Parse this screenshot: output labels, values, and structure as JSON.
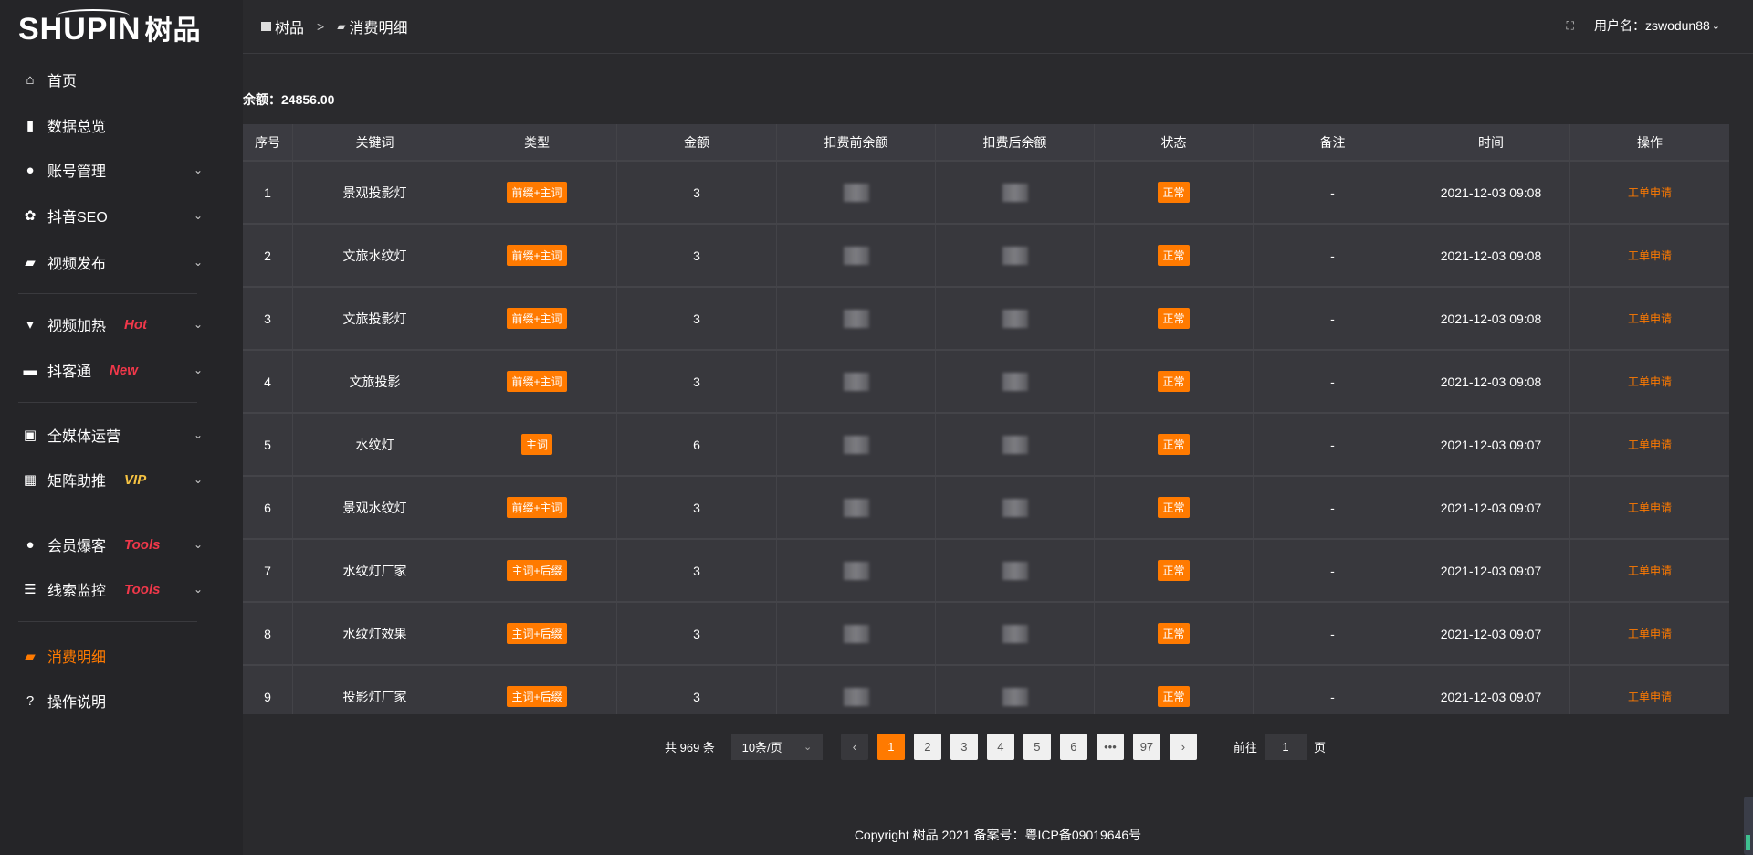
{
  "app": {
    "logo_text": "SHUPIN",
    "logo_cn": "树品"
  },
  "sidebar": {
    "items": [
      {
        "label": "首页",
        "icon": "home-icon",
        "glyph": "⌂",
        "tag": "",
        "has_chevron": false
      },
      {
        "label": "数据总览",
        "icon": "bar-chart-icon",
        "glyph": "▮",
        "tag": "",
        "has_chevron": false
      },
      {
        "label": "账号管理",
        "icon": "user-icon",
        "glyph": "●",
        "tag": "",
        "has_chevron": true
      },
      {
        "label": "抖音SEO",
        "icon": "gear-icon",
        "glyph": "✿",
        "tag": "",
        "has_chevron": true
      },
      {
        "label": "视频发布",
        "icon": "video-camera-icon",
        "glyph": "▰",
        "tag": "",
        "has_chevron": true
      },
      {
        "label": "视频加热",
        "icon": "flag-icon",
        "glyph": "▾",
        "tag": "Hot",
        "tag_color": "#f0384a",
        "has_chevron": true
      },
      {
        "label": "抖客通",
        "icon": "chat-icon",
        "glyph": "▬",
        "tag": "New",
        "tag_color": "#f0384a",
        "has_chevron": true
      },
      {
        "label": "全媒体运营",
        "icon": "monitor-icon",
        "glyph": "▣",
        "tag": "",
        "has_chevron": true
      },
      {
        "label": "矩阵助推",
        "icon": "grid-icon",
        "glyph": "▦",
        "tag": "VIP",
        "tag_color": "#f5c242",
        "has_chevron": true
      },
      {
        "label": "会员爆客",
        "icon": "user-icon",
        "glyph": "●",
        "tag": "Tools",
        "tag_color": "#f0384a",
        "has_chevron": true
      },
      {
        "label": "线索监控",
        "icon": "sliders-icon",
        "glyph": "☰",
        "tag": "Tools",
        "tag_color": "#f0384a",
        "has_chevron": true
      },
      {
        "label": "消费明细",
        "icon": "wallet-icon",
        "glyph": "▰",
        "tag": "",
        "has_chevron": false,
        "active": true
      },
      {
        "label": "操作说明",
        "icon": "question-icon",
        "glyph": "?",
        "tag": "",
        "has_chevron": false
      }
    ]
  },
  "header": {
    "breadcrumb": [
      "树品",
      "消费明细"
    ],
    "breadcrumb_sep": ">",
    "username_label": "用户名：zswodun88"
  },
  "balance": {
    "label": "余额：24856.00"
  },
  "table": {
    "columns": [
      "序号",
      "关键词",
      "类型",
      "金额",
      "扣费前余额",
      "扣费后余额",
      "状态",
      "备注",
      "时间",
      "操作"
    ],
    "rows": [
      {
        "no": "1",
        "keyword": "景观投影灯",
        "type": "前缀+主词",
        "amount": "3",
        "status": "正常",
        "note": "-",
        "time": "2021-12-03 09:08",
        "action": "工单申请"
      },
      {
        "no": "2",
        "keyword": "文旅水纹灯",
        "type": "前缀+主词",
        "amount": "3",
        "status": "正常",
        "note": "-",
        "time": "2021-12-03 09:08",
        "action": "工单申请"
      },
      {
        "no": "3",
        "keyword": "文旅投影灯",
        "type": "前缀+主词",
        "amount": "3",
        "status": "正常",
        "note": "-",
        "time": "2021-12-03 09:08",
        "action": "工单申请"
      },
      {
        "no": "4",
        "keyword": "文旅投影",
        "type": "前缀+主词",
        "amount": "3",
        "status": "正常",
        "note": "-",
        "time": "2021-12-03 09:08",
        "action": "工单申请"
      },
      {
        "no": "5",
        "keyword": "水纹灯",
        "type": "主词",
        "amount": "6",
        "status": "正常",
        "note": "-",
        "time": "2021-12-03 09:07",
        "action": "工单申请"
      },
      {
        "no": "6",
        "keyword": "景观水纹灯",
        "type": "前缀+主词",
        "amount": "3",
        "status": "正常",
        "note": "-",
        "time": "2021-12-03 09:07",
        "action": "工单申请"
      },
      {
        "no": "7",
        "keyword": "水纹灯厂家",
        "type": "主词+后缀",
        "amount": "3",
        "status": "正常",
        "note": "-",
        "time": "2021-12-03 09:07",
        "action": "工单申请"
      },
      {
        "no": "8",
        "keyword": "水纹灯效果",
        "type": "主词+后缀",
        "amount": "3",
        "status": "正常",
        "note": "-",
        "time": "2021-12-03 09:07",
        "action": "工单申请"
      },
      {
        "no": "9",
        "keyword": "投影灯厂家",
        "type": "主词+后缀",
        "amount": "3",
        "status": "正常",
        "note": "-",
        "time": "2021-12-03 09:07",
        "action": "工单申请"
      }
    ]
  },
  "pagination": {
    "total": "共 969 条",
    "page_size": "10条/页",
    "pages": [
      "1",
      "2",
      "3",
      "4",
      "5",
      "6",
      "•••",
      "97"
    ],
    "current": "1",
    "goto_label": "前往",
    "goto_value": "1",
    "page_suffix": "页"
  },
  "footer": {
    "copyright": "Copyright 树品 2021 备案号：粤ICP备09019646号"
  },
  "colors": {
    "accent": "#ff7a00",
    "hot": "#f0384a",
    "vip": "#f5c242"
  }
}
